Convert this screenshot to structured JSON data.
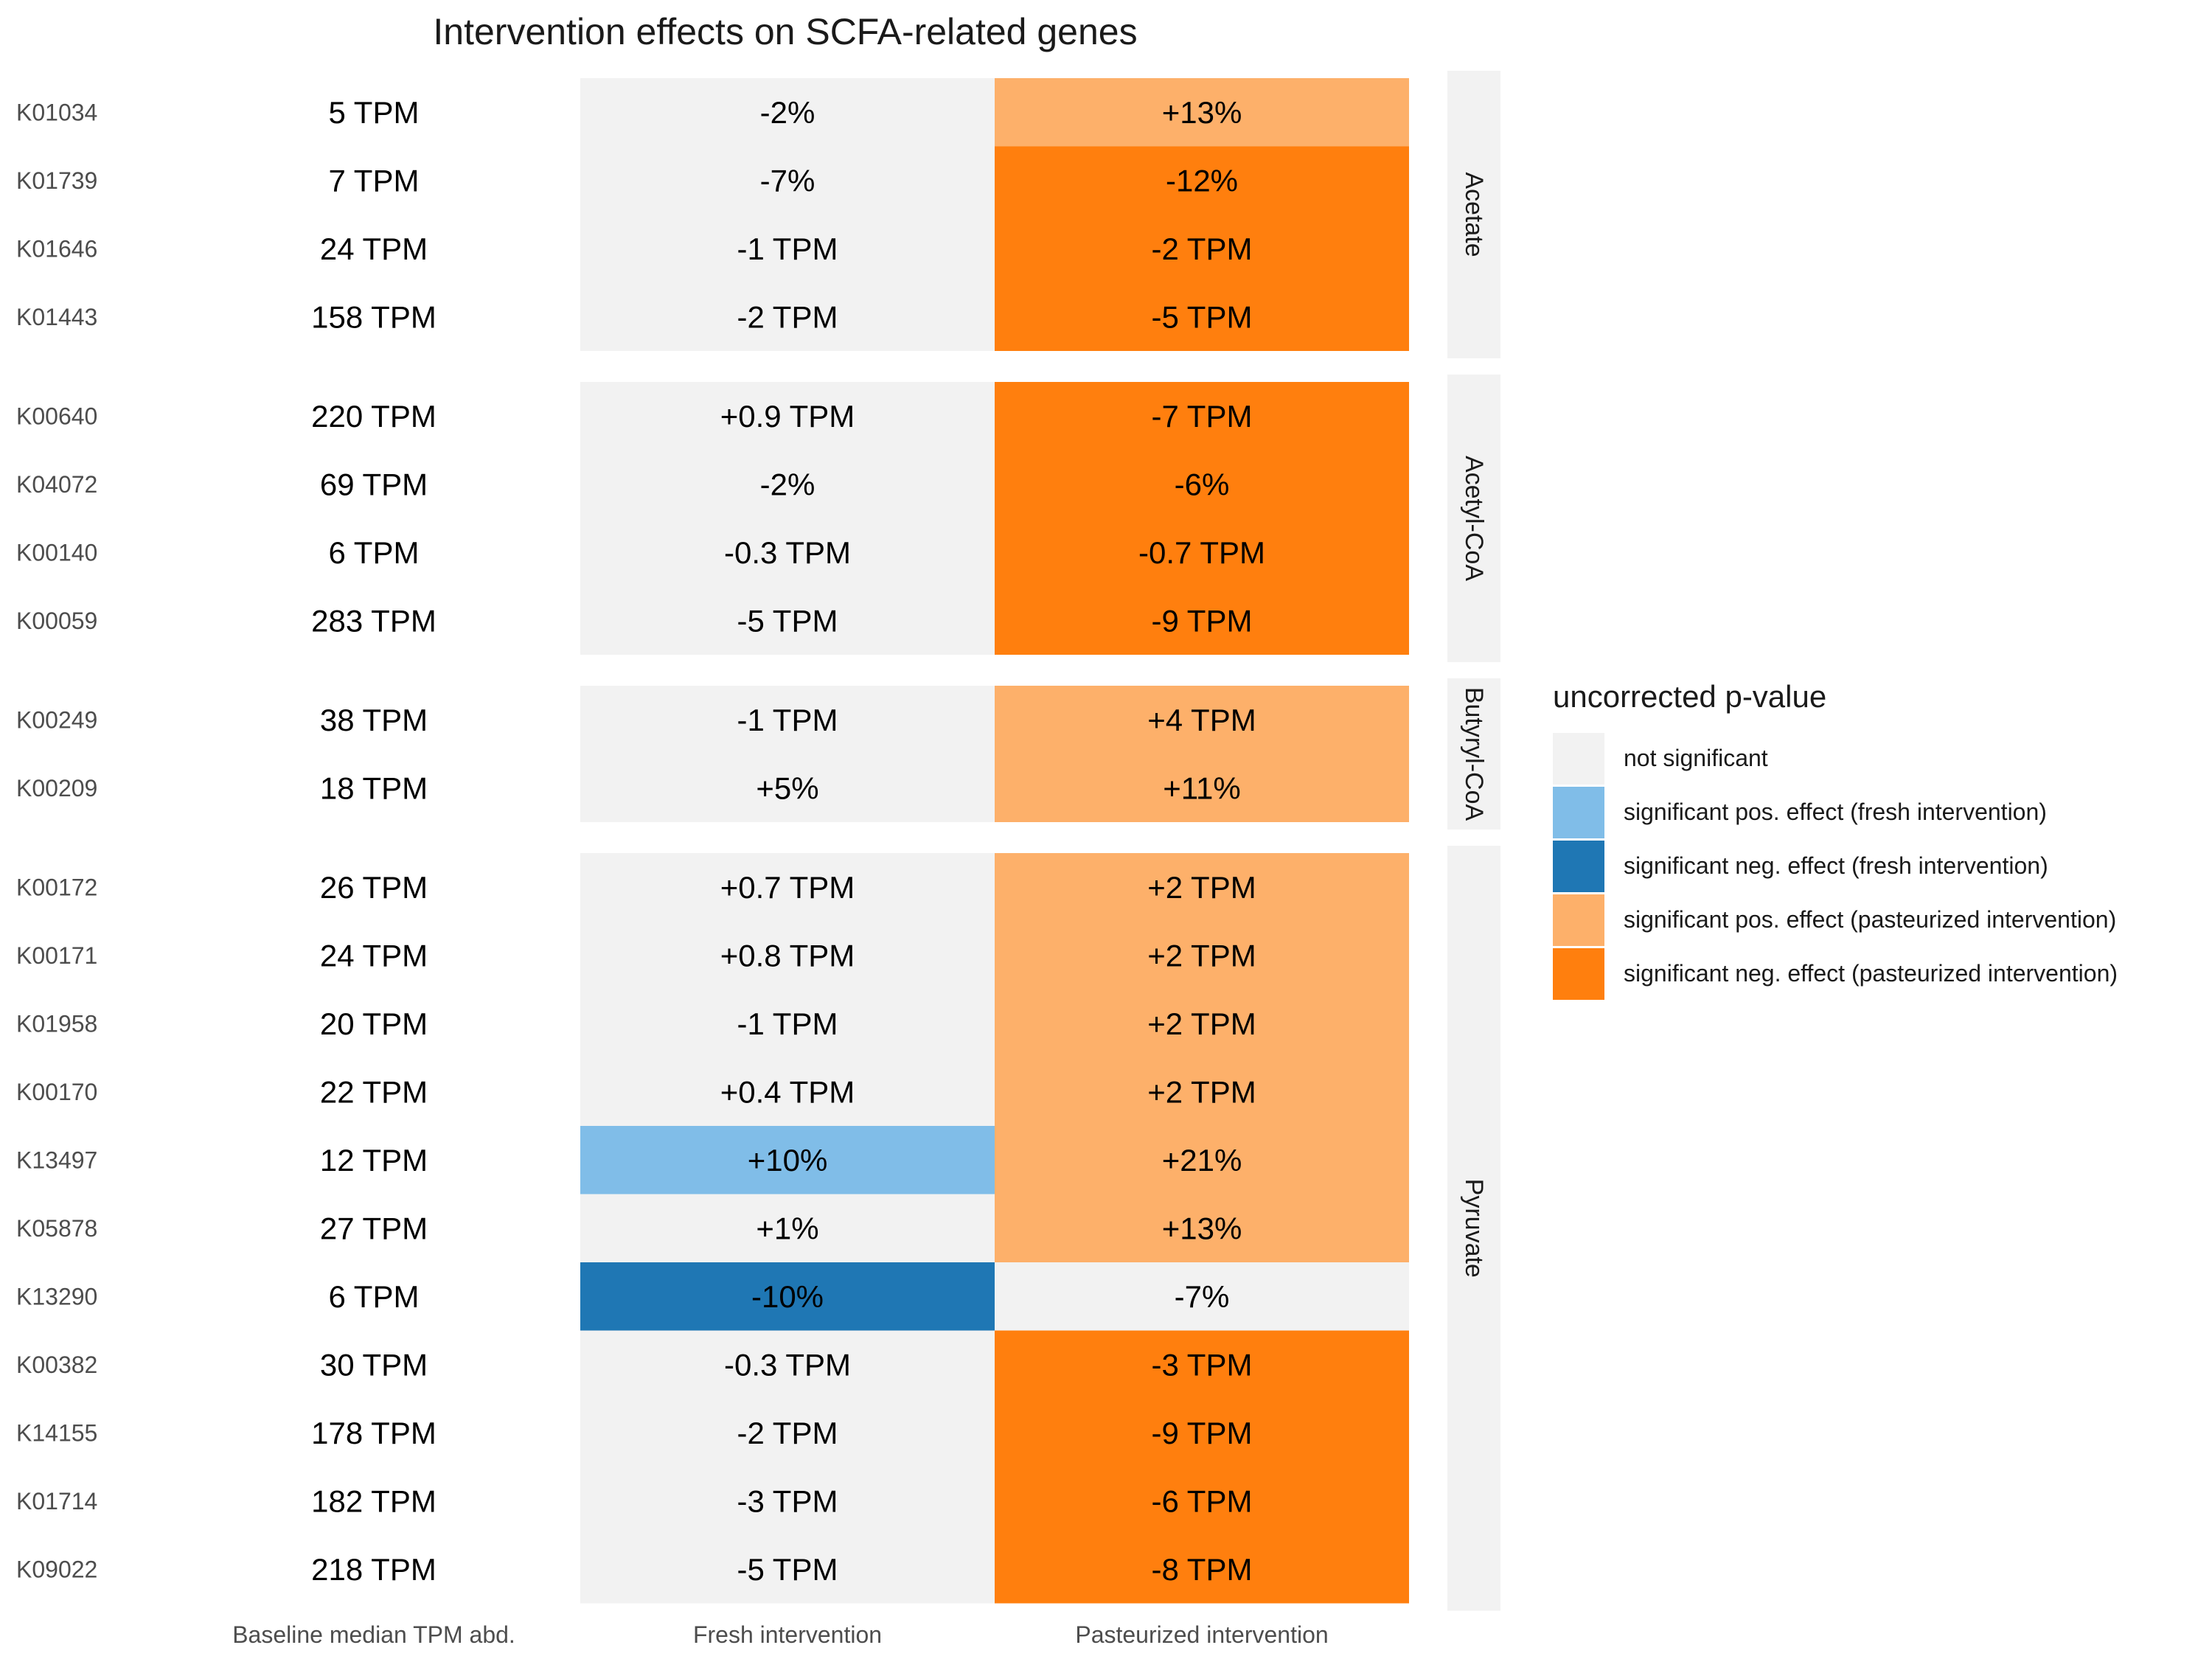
{
  "chart_data": {
    "type": "table",
    "title": "Intervention effects on SCFA-related genes",
    "columns": [
      "Baseline median TPM abd.",
      "Fresh intervention",
      "Pasteurized intervention"
    ],
    "legend": {
      "title": "uncorrected p-value",
      "items": [
        {
          "key": "ns",
          "label": "not significant",
          "color": "#f2f2f2"
        },
        {
          "key": "fresh_pos",
          "label": "significant pos. effect (fresh intervention)",
          "color": "#80bde8"
        },
        {
          "key": "fresh_neg",
          "label": "significant neg. effect (fresh intervention)",
          "color": "#1f77b4"
        },
        {
          "key": "past_pos",
          "label": "significant pos. effect (pasteurized intervention)",
          "color": "#fdb06a"
        },
        {
          "key": "past_neg",
          "label": "significant neg. effect (pasteurized intervention)",
          "color": "#ff7f0e"
        }
      ]
    },
    "groups": [
      {
        "name": "Acetate",
        "rows": [
          {
            "gene": "K01034",
            "baseline": "5 TPM",
            "fresh": "-2%",
            "fresh_sig": "ns",
            "past": "+13%",
            "past_sig": "past_pos"
          },
          {
            "gene": "K01739",
            "baseline": "7 TPM",
            "fresh": "-7%",
            "fresh_sig": "ns",
            "past": "-12%",
            "past_sig": "past_neg"
          },
          {
            "gene": "K01646",
            "baseline": "24 TPM",
            "fresh": "-1 TPM",
            "fresh_sig": "ns",
            "past": "-2 TPM",
            "past_sig": "past_neg"
          },
          {
            "gene": "K01443",
            "baseline": "158 TPM",
            "fresh": "-2 TPM",
            "fresh_sig": "ns",
            "past": "-5 TPM",
            "past_sig": "past_neg"
          }
        ]
      },
      {
        "name": "Acetyl-CoA",
        "rows": [
          {
            "gene": "K00640",
            "baseline": "220 TPM",
            "fresh": "+0.9 TPM",
            "fresh_sig": "ns",
            "past": "-7 TPM",
            "past_sig": "past_neg"
          },
          {
            "gene": "K04072",
            "baseline": "69 TPM",
            "fresh": "-2%",
            "fresh_sig": "ns",
            "past": "-6%",
            "past_sig": "past_neg"
          },
          {
            "gene": "K00140",
            "baseline": "6 TPM",
            "fresh": "-0.3 TPM",
            "fresh_sig": "ns",
            "past": "-0.7 TPM",
            "past_sig": "past_neg"
          },
          {
            "gene": "K00059",
            "baseline": "283 TPM",
            "fresh": "-5 TPM",
            "fresh_sig": "ns",
            "past": "-9 TPM",
            "past_sig": "past_neg"
          }
        ]
      },
      {
        "name": "Butyryl-CoA",
        "rows": [
          {
            "gene": "K00249",
            "baseline": "38 TPM",
            "fresh": "-1 TPM",
            "fresh_sig": "ns",
            "past": "+4 TPM",
            "past_sig": "past_pos"
          },
          {
            "gene": "K00209",
            "baseline": "18 TPM",
            "fresh": "+5%",
            "fresh_sig": "ns",
            "past": "+11%",
            "past_sig": "past_pos"
          }
        ]
      },
      {
        "name": "Pyruvate",
        "rows": [
          {
            "gene": "K00172",
            "baseline": "26 TPM",
            "fresh": "+0.7 TPM",
            "fresh_sig": "ns",
            "past": "+2 TPM",
            "past_sig": "past_pos"
          },
          {
            "gene": "K00171",
            "baseline": "24 TPM",
            "fresh": "+0.8 TPM",
            "fresh_sig": "ns",
            "past": "+2 TPM",
            "past_sig": "past_pos"
          },
          {
            "gene": "K01958",
            "baseline": "20 TPM",
            "fresh": "-1 TPM",
            "fresh_sig": "ns",
            "past": "+2 TPM",
            "past_sig": "past_pos"
          },
          {
            "gene": "K00170",
            "baseline": "22 TPM",
            "fresh": "+0.4 TPM",
            "fresh_sig": "ns",
            "past": "+2 TPM",
            "past_sig": "past_pos"
          },
          {
            "gene": "K13497",
            "baseline": "12 TPM",
            "fresh": "+10%",
            "fresh_sig": "fresh_pos",
            "past": "+21%",
            "past_sig": "past_pos"
          },
          {
            "gene": "K05878",
            "baseline": "27 TPM",
            "fresh": "+1%",
            "fresh_sig": "ns",
            "past": "+13%",
            "past_sig": "past_pos"
          },
          {
            "gene": "K13290",
            "baseline": "6 TPM",
            "fresh": "-10%",
            "fresh_sig": "fresh_neg",
            "past": "-7%",
            "past_sig": "ns"
          },
          {
            "gene": "K00382",
            "baseline": "30 TPM",
            "fresh": "-0.3 TPM",
            "fresh_sig": "ns",
            "past": "-3 TPM",
            "past_sig": "past_neg"
          },
          {
            "gene": "K14155",
            "baseline": "178 TPM",
            "fresh": "-2 TPM",
            "fresh_sig": "ns",
            "past": "-9 TPM",
            "past_sig": "past_neg"
          },
          {
            "gene": "K01714",
            "baseline": "182 TPM",
            "fresh": "-3 TPM",
            "fresh_sig": "ns",
            "past": "-6 TPM",
            "past_sig": "past_neg"
          },
          {
            "gene": "K09022",
            "baseline": "218 TPM",
            "fresh": "-5 TPM",
            "fresh_sig": "ns",
            "past": "-8 TPM",
            "past_sig": "past_neg"
          }
        ]
      }
    ]
  }
}
